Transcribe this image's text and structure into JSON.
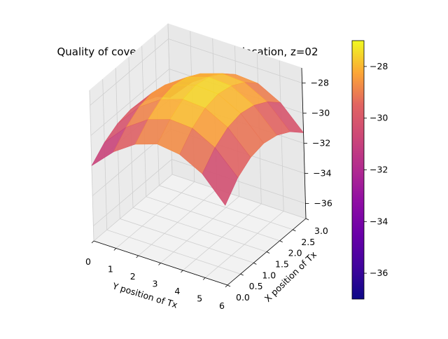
{
  "chart_data": {
    "type": "surface3d",
    "title": "Quality of coverage by transmitter location, z=02",
    "xlabel": "Y position of Tx",
    "ylabel": "X position of Tx",
    "zlabel": "",
    "x_range": [
      0,
      6
    ],
    "y_range": [
      0,
      3
    ],
    "z_range": [
      -37,
      -27
    ],
    "x_ticks": [
      "0",
      "1",
      "2",
      "3",
      "4",
      "5",
      "6"
    ],
    "y_ticks": [
      "0.0",
      "0.5",
      "1.0",
      "1.5",
      "2.0",
      "2.5",
      "3.0"
    ],
    "z_ticks": [
      "−28",
      "−30",
      "−32",
      "−34",
      "−36"
    ],
    "grid": true,
    "colormap": "plasma",
    "colorbar": {
      "range": [
        -37,
        -27
      ],
      "ticks": [
        "−28",
        "−30",
        "−32",
        "−34",
        "−36"
      ]
    },
    "x_values": [
      0,
      1,
      2,
      3,
      4,
      5,
      6
    ],
    "y_values": [
      0,
      0.5,
      1.0,
      1.5,
      2.0,
      2.5,
      3.0
    ],
    "z_values": [
      [
        -32.0,
        -30.6,
        -29.6,
        -29.1,
        -29.3,
        -30.1,
        -31.7
      ],
      [
        -31.2,
        -29.7,
        -28.7,
        -28.2,
        -28.3,
        -29.1,
        -30.6
      ],
      [
        -30.7,
        -29.1,
        -28.1,
        -27.6,
        -27.7,
        -28.5,
        -30.0
      ],
      [
        -30.5,
        -28.9,
        -27.9,
        -27.4,
        -27.5,
        -28.3,
        -29.8
      ],
      [
        -30.7,
        -29.1,
        -28.1,
        -27.6,
        -27.7,
        -28.5,
        -30.0
      ],
      [
        -31.1,
        -29.6,
        -28.6,
        -28.1,
        -28.2,
        -29.0,
        -30.5
      ],
      [
        -31.9,
        -30.4,
        -29.4,
        -28.9,
        -29.0,
        -29.8,
        -31.3
      ]
    ]
  }
}
